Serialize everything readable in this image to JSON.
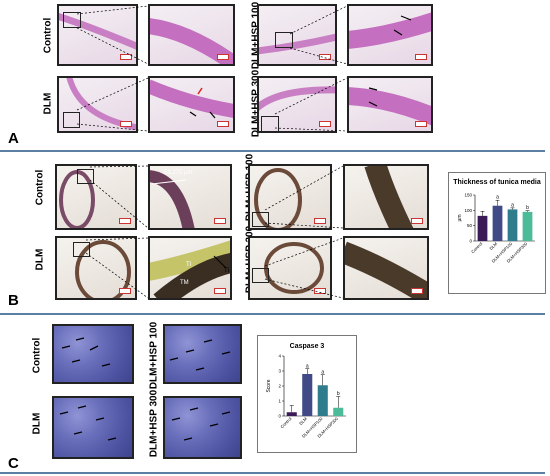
{
  "panels": {
    "A": {
      "letter": "A",
      "labels": [
        "Control",
        "DLM",
        "DLM+HSP 100",
        "DLM+HSP 300"
      ]
    },
    "B": {
      "letter": "B",
      "labels": [
        "Control",
        "DLM",
        "DLM+HSP 100",
        "DLM+HSP 300"
      ],
      "annotations": {
        "measure": "53.275 µm",
        "tm": "TM",
        "ti": "TI",
        "ti2": "TI"
      }
    },
    "C": {
      "letter": "C",
      "labels": [
        "Control",
        "DLM",
        "DLM+HSP 100",
        "DLM+HSP 300"
      ]
    }
  },
  "chart_data": [
    {
      "type": "bar",
      "title": "Thickness of tunica media",
      "ylabel": "µm",
      "categories": [
        "Control",
        "DLM",
        "DLM+HSP100",
        "DLM+HSP300"
      ],
      "values": [
        82,
        115,
        103,
        95
      ],
      "errors": [
        15,
        18,
        5,
        4
      ],
      "sig": [
        "",
        "a",
        "a",
        "b"
      ],
      "ylim": [
        0,
        150
      ],
      "yticks": [
        "0",
        "50",
        "100",
        "150"
      ],
      "colors": [
        "#3b1b57",
        "#3f4a86",
        "#2f7d8c",
        "#4cbb9a"
      ]
    },
    {
      "type": "bar",
      "title": "Caspase 3",
      "ylabel": "Score",
      "categories": [
        "Control",
        "DLM",
        "DLM+HSP100",
        "DLM+HSP300"
      ],
      "values": [
        0.25,
        2.8,
        2.05,
        0.55
      ],
      "errors": [
        0.45,
        0.35,
        0.7,
        0.75
      ],
      "sig": [
        "",
        "a",
        "a",
        "b"
      ],
      "ylim": [
        0,
        4
      ],
      "yticks": [
        "0",
        "1",
        "2",
        "3",
        "4"
      ],
      "colors": [
        "#3b1b57",
        "#3f4a86",
        "#2f7d8c",
        "#4cbb9a"
      ]
    }
  ]
}
